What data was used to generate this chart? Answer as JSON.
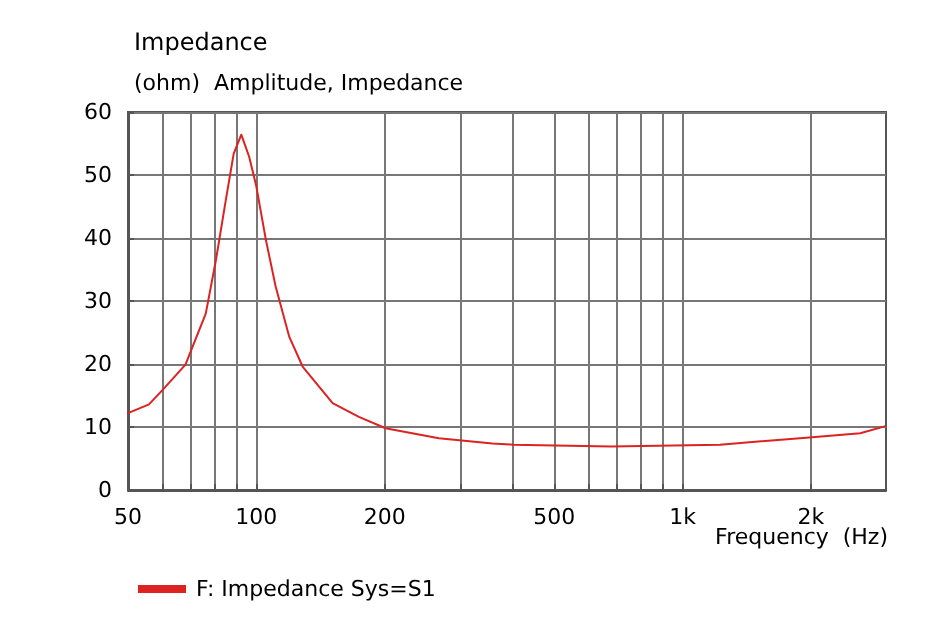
{
  "chart_data": {
    "type": "line",
    "title": "Impedance",
    "subtitle": "(ohm)  Amplitude, Impedance",
    "xlabel": "Frequency  (Hz)",
    "log": "x",
    "grid": true,
    "legend": "bottom left",
    "marker": "none",
    "line_style": "solid",
    "xlim": [
      50,
      3000
    ],
    "ylim": [
      0,
      60
    ],
    "xticks": [
      50,
      {
        "value": 60,
        "label": null
      },
      {
        "value": 70,
        "label": null
      },
      {
        "value": 80,
        "label": null
      },
      {
        "value": 90,
        "label": null
      },
      100,
      200,
      {
        "value": 300,
        "label": null
      },
      {
        "value": 400,
        "label": null
      },
      500,
      {
        "value": 600,
        "label": null
      },
      {
        "value": 700,
        "label": null
      },
      {
        "value": 800,
        "label": null
      },
      {
        "value": 900,
        "label": null
      },
      {
        "value": 1000,
        "label": "1k"
      },
      {
        "value": 2000,
        "label": "2k"
      }
    ],
    "yticks": [
      0,
      10,
      20,
      30,
      40,
      50,
      60
    ],
    "series": [
      {
        "name": "F: Impedance Sys=S1",
        "color": "#dd2222",
        "x": [
          50,
          56,
          60.3,
          68.2,
          76.1,
          80.4,
          84.8,
          88.5,
          92.2,
          96.2,
          100,
          105.3,
          111,
          119.5,
          128.4,
          151,
          174,
          201,
          268,
          358,
          400,
          680,
          1224,
          1950,
          2610,
          2980
        ],
        "values": [
          12.2,
          13.6,
          15.9,
          19.9,
          28,
          36.5,
          46,
          53.4,
          56.4,
          52.9,
          48.2,
          39.7,
          32.3,
          24.3,
          19.6,
          13.8,
          11.6,
          9.8,
          8.2,
          7.4,
          7.2,
          6.9,
          7.2,
          8.3,
          9.0,
          10.1
        ]
      }
    ]
  }
}
